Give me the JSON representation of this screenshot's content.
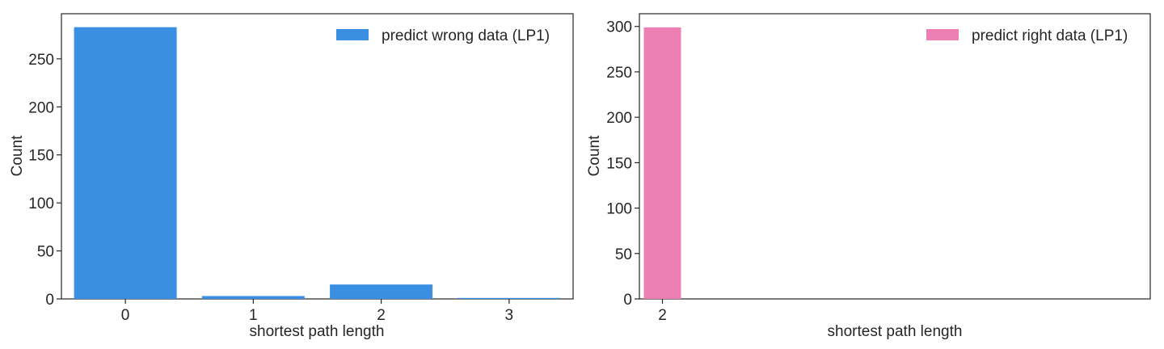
{
  "chart_data": [
    {
      "type": "bar",
      "categories": [
        "0",
        "1",
        "2",
        "3"
      ],
      "series": [
        {
          "name": "predict wrong data (LP1)",
          "values": [
            283,
            3,
            15,
            1
          ],
          "color": "#3b8fe3"
        }
      ],
      "xlabel": "shortest path length",
      "ylabel": "Count",
      "ylim": [
        0,
        297
      ],
      "yticks": [
        0,
        50,
        100,
        150,
        200,
        250
      ],
      "grid": false,
      "legend": "top-right"
    },
    {
      "type": "bar",
      "categories": [
        "2"
      ],
      "series": [
        {
          "name": "predict right data (LP1)",
          "values": [
            299
          ],
          "color": "#ee7fb5"
        }
      ],
      "xlabel": "shortest path length",
      "ylabel": "Count",
      "ylim": [
        0,
        314
      ],
      "yticks": [
        0,
        50,
        100,
        150,
        200,
        250,
        300
      ],
      "grid": false,
      "legend": "top-right"
    }
  ]
}
